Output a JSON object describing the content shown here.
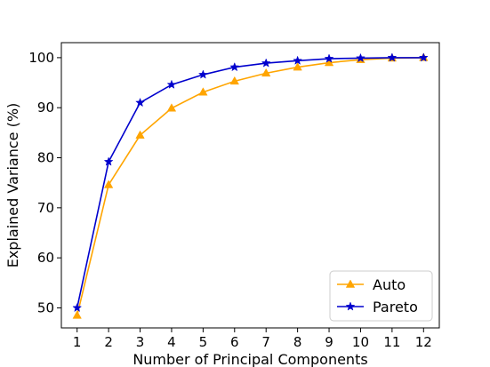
{
  "chart_data": {
    "type": "line",
    "title": "",
    "xlabel": "Number of Principal Components",
    "ylabel": "Explained Variance (%)",
    "x": [
      1,
      2,
      3,
      4,
      5,
      6,
      7,
      8,
      9,
      10,
      11,
      12
    ],
    "xlim": [
      0.5,
      12.5
    ],
    "ylim": [
      46,
      103
    ],
    "xticks": [
      1,
      2,
      3,
      4,
      5,
      6,
      7,
      8,
      9,
      10,
      11,
      12
    ],
    "yticks": [
      50,
      60,
      70,
      80,
      90,
      100
    ],
    "grid": false,
    "legend_position": "lower right",
    "series": [
      {
        "name": "Auto",
        "color": "#FFA500",
        "marker": "triangle-up",
        "values": [
          48.5,
          74.6,
          84.5,
          89.9,
          93.1,
          95.3,
          96.9,
          98.1,
          99.0,
          99.6,
          99.9,
          100.0
        ]
      },
      {
        "name": "Pareto",
        "color": "#0000CD",
        "marker": "star",
        "values": [
          50.0,
          79.2,
          91.0,
          94.6,
          96.6,
          98.1,
          98.9,
          99.4,
          99.8,
          99.9,
          100.0,
          100.0
        ]
      }
    ]
  }
}
